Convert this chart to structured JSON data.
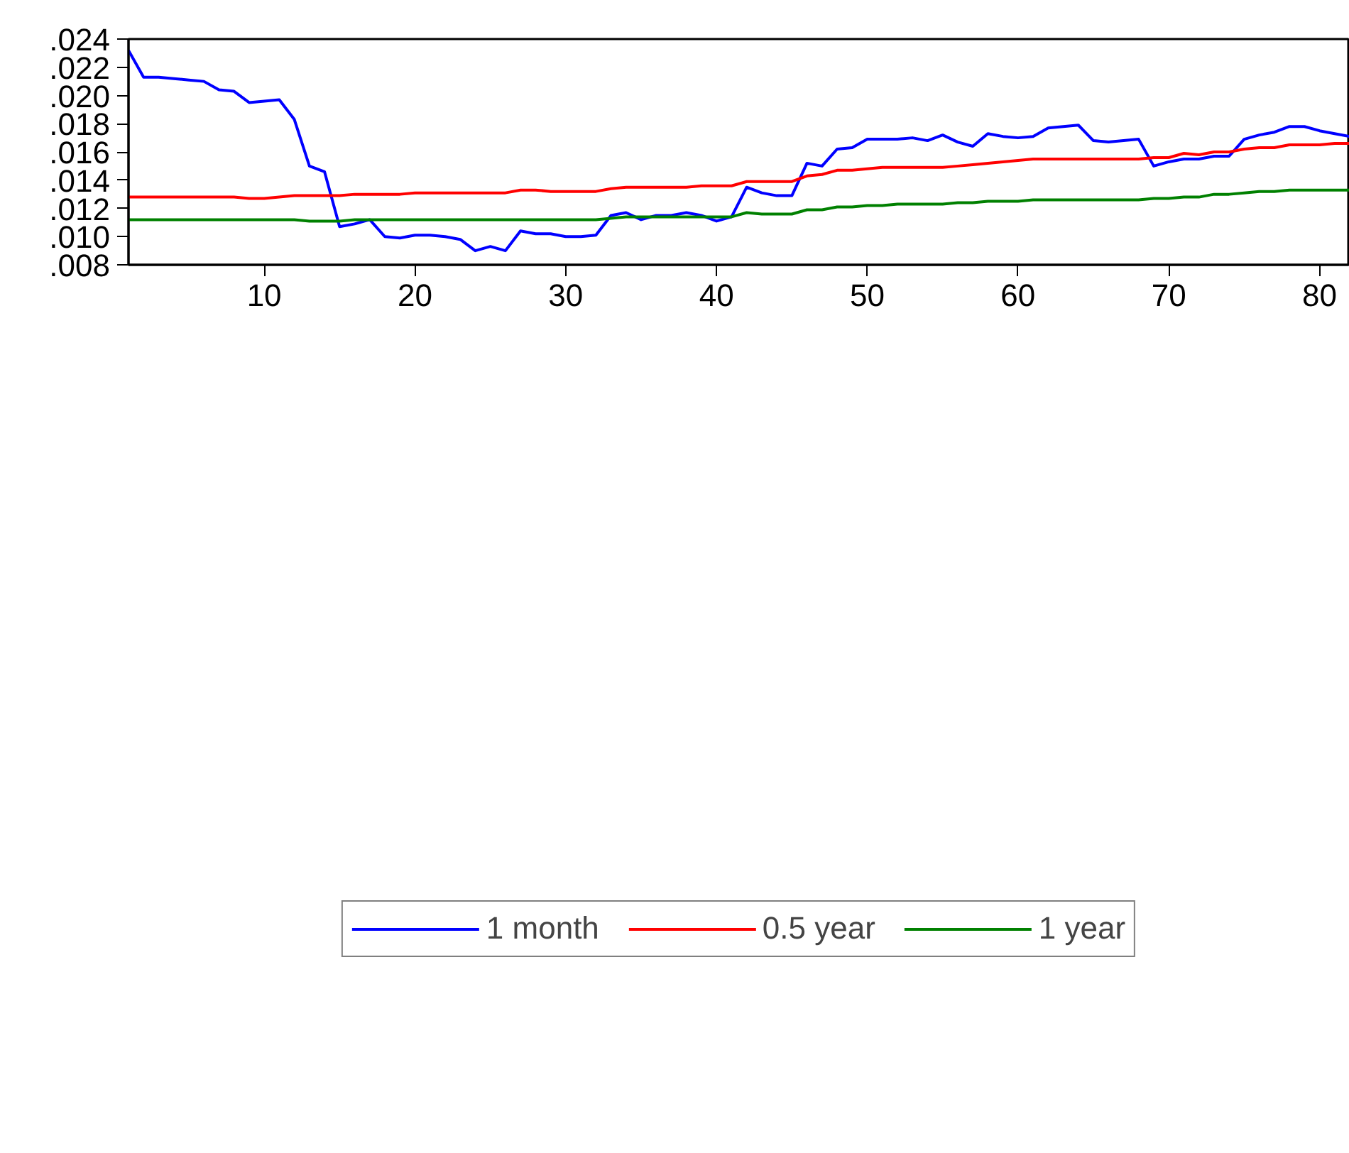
{
  "chart_data": {
    "type": "line",
    "x": [
      1,
      2,
      3,
      4,
      5,
      6,
      7,
      8,
      9,
      10,
      11,
      12,
      13,
      14,
      15,
      16,
      17,
      18,
      19,
      20,
      21,
      22,
      23,
      24,
      25,
      26,
      27,
      28,
      29,
      30,
      31,
      32,
      33,
      34,
      35,
      36,
      37,
      38,
      39,
      40,
      41,
      42,
      43,
      44,
      45,
      46,
      47,
      48,
      49,
      50,
      51,
      52,
      53,
      54,
      55,
      56,
      57,
      58,
      59,
      60,
      61,
      62,
      63,
      64,
      65,
      66,
      67,
      68,
      69,
      70,
      71,
      72,
      73,
      74,
      75,
      76,
      77,
      78,
      79,
      80,
      81,
      82
    ],
    "series": [
      {
        "name": "1 month",
        "color": "#0000ff",
        "values": [
          0.0232,
          0.0213,
          0.0213,
          0.0212,
          0.0211,
          0.021,
          0.0204,
          0.0203,
          0.0195,
          0.0196,
          0.0197,
          0.0183,
          0.015,
          0.0146,
          0.0107,
          0.0109,
          0.0112,
          0.01,
          0.0099,
          0.0101,
          0.0101,
          0.01,
          0.0098,
          0.009,
          0.0093,
          0.009,
          0.0104,
          0.0102,
          0.0102,
          0.01,
          0.01,
          0.0101,
          0.0115,
          0.0117,
          0.0112,
          0.0115,
          0.0115,
          0.0117,
          0.0115,
          0.0111,
          0.0114,
          0.0135,
          0.0131,
          0.0129,
          0.0129,
          0.0152,
          0.015,
          0.0162,
          0.0163,
          0.0169,
          0.0169,
          0.0169,
          0.017,
          0.0168,
          0.0172,
          0.0167,
          0.0164,
          0.0173,
          0.0171,
          0.017,
          0.0171,
          0.0177,
          0.0178,
          0.0179,
          0.0168,
          0.0167,
          0.0168,
          0.0169,
          0.015,
          0.0153,
          0.0155,
          0.0155,
          0.0157,
          0.0157,
          0.0169,
          0.0172,
          0.0174,
          0.0178,
          0.0178,
          0.0175,
          0.0173,
          0.0171
        ]
      },
      {
        "name": "0.5 year",
        "color": "#ff0000",
        "values": [
          0.0128,
          0.0128,
          0.0128,
          0.0128,
          0.0128,
          0.0128,
          0.0128,
          0.0128,
          0.0127,
          0.0127,
          0.0128,
          0.0129,
          0.0129,
          0.0129,
          0.0129,
          0.013,
          0.013,
          0.013,
          0.013,
          0.0131,
          0.0131,
          0.0131,
          0.0131,
          0.0131,
          0.0131,
          0.0131,
          0.0133,
          0.0133,
          0.0132,
          0.0132,
          0.0132,
          0.0132,
          0.0134,
          0.0135,
          0.0135,
          0.0135,
          0.0135,
          0.0135,
          0.0136,
          0.0136,
          0.0136,
          0.0139,
          0.0139,
          0.0139,
          0.0139,
          0.0143,
          0.0144,
          0.0147,
          0.0147,
          0.0148,
          0.0149,
          0.0149,
          0.0149,
          0.0149,
          0.0149,
          0.015,
          0.0151,
          0.0152,
          0.0153,
          0.0154,
          0.0155,
          0.0155,
          0.0155,
          0.0155,
          0.0155,
          0.0155,
          0.0155,
          0.0155,
          0.0156,
          0.0156,
          0.0159,
          0.0158,
          0.016,
          0.016,
          0.0162,
          0.0163,
          0.0163,
          0.0165,
          0.0165,
          0.0165,
          0.0166,
          0.0166
        ]
      },
      {
        "name": "1 year",
        "color": "#008000",
        "values": [
          0.0112,
          0.0112,
          0.0112,
          0.0112,
          0.0112,
          0.0112,
          0.0112,
          0.0112,
          0.0112,
          0.0112,
          0.0112,
          0.0112,
          0.0111,
          0.0111,
          0.0111,
          0.0112,
          0.0112,
          0.0112,
          0.0112,
          0.0112,
          0.0112,
          0.0112,
          0.0112,
          0.0112,
          0.0112,
          0.0112,
          0.0112,
          0.0112,
          0.0112,
          0.0112,
          0.0112,
          0.0112,
          0.0113,
          0.0114,
          0.0114,
          0.0114,
          0.0114,
          0.0114,
          0.0114,
          0.0114,
          0.0114,
          0.0117,
          0.0116,
          0.0116,
          0.0116,
          0.0119,
          0.0119,
          0.0121,
          0.0121,
          0.0122,
          0.0122,
          0.0123,
          0.0123,
          0.0123,
          0.0123,
          0.0124,
          0.0124,
          0.0125,
          0.0125,
          0.0125,
          0.0126,
          0.0126,
          0.0126,
          0.0126,
          0.0126,
          0.0126,
          0.0126,
          0.0126,
          0.0127,
          0.0127,
          0.0128,
          0.0128,
          0.013,
          0.013,
          0.0131,
          0.0132,
          0.0132,
          0.0133,
          0.0133,
          0.0133,
          0.0133,
          0.0133
        ]
      }
    ],
    "xlim": [
      1,
      82
    ],
    "xticks": [
      10,
      20,
      30,
      40,
      50,
      60,
      70,
      80
    ],
    "ylim": [
      0.008,
      0.024
    ],
    "yticks": [
      {
        "value": 0.008,
        "label": ".008"
      },
      {
        "value": 0.01,
        "label": ".010"
      },
      {
        "value": 0.012,
        "label": ".012"
      },
      {
        "value": 0.014,
        "label": ".014"
      },
      {
        "value": 0.016,
        "label": ".016"
      },
      {
        "value": 0.018,
        "label": ".018"
      },
      {
        "value": 0.02,
        "label": ".020"
      },
      {
        "value": 0.022,
        "label": ".022"
      },
      {
        "value": 0.024,
        "label": ".024"
      }
    ],
    "legend": "bottom",
    "grid": false,
    "line_style": "solid"
  }
}
